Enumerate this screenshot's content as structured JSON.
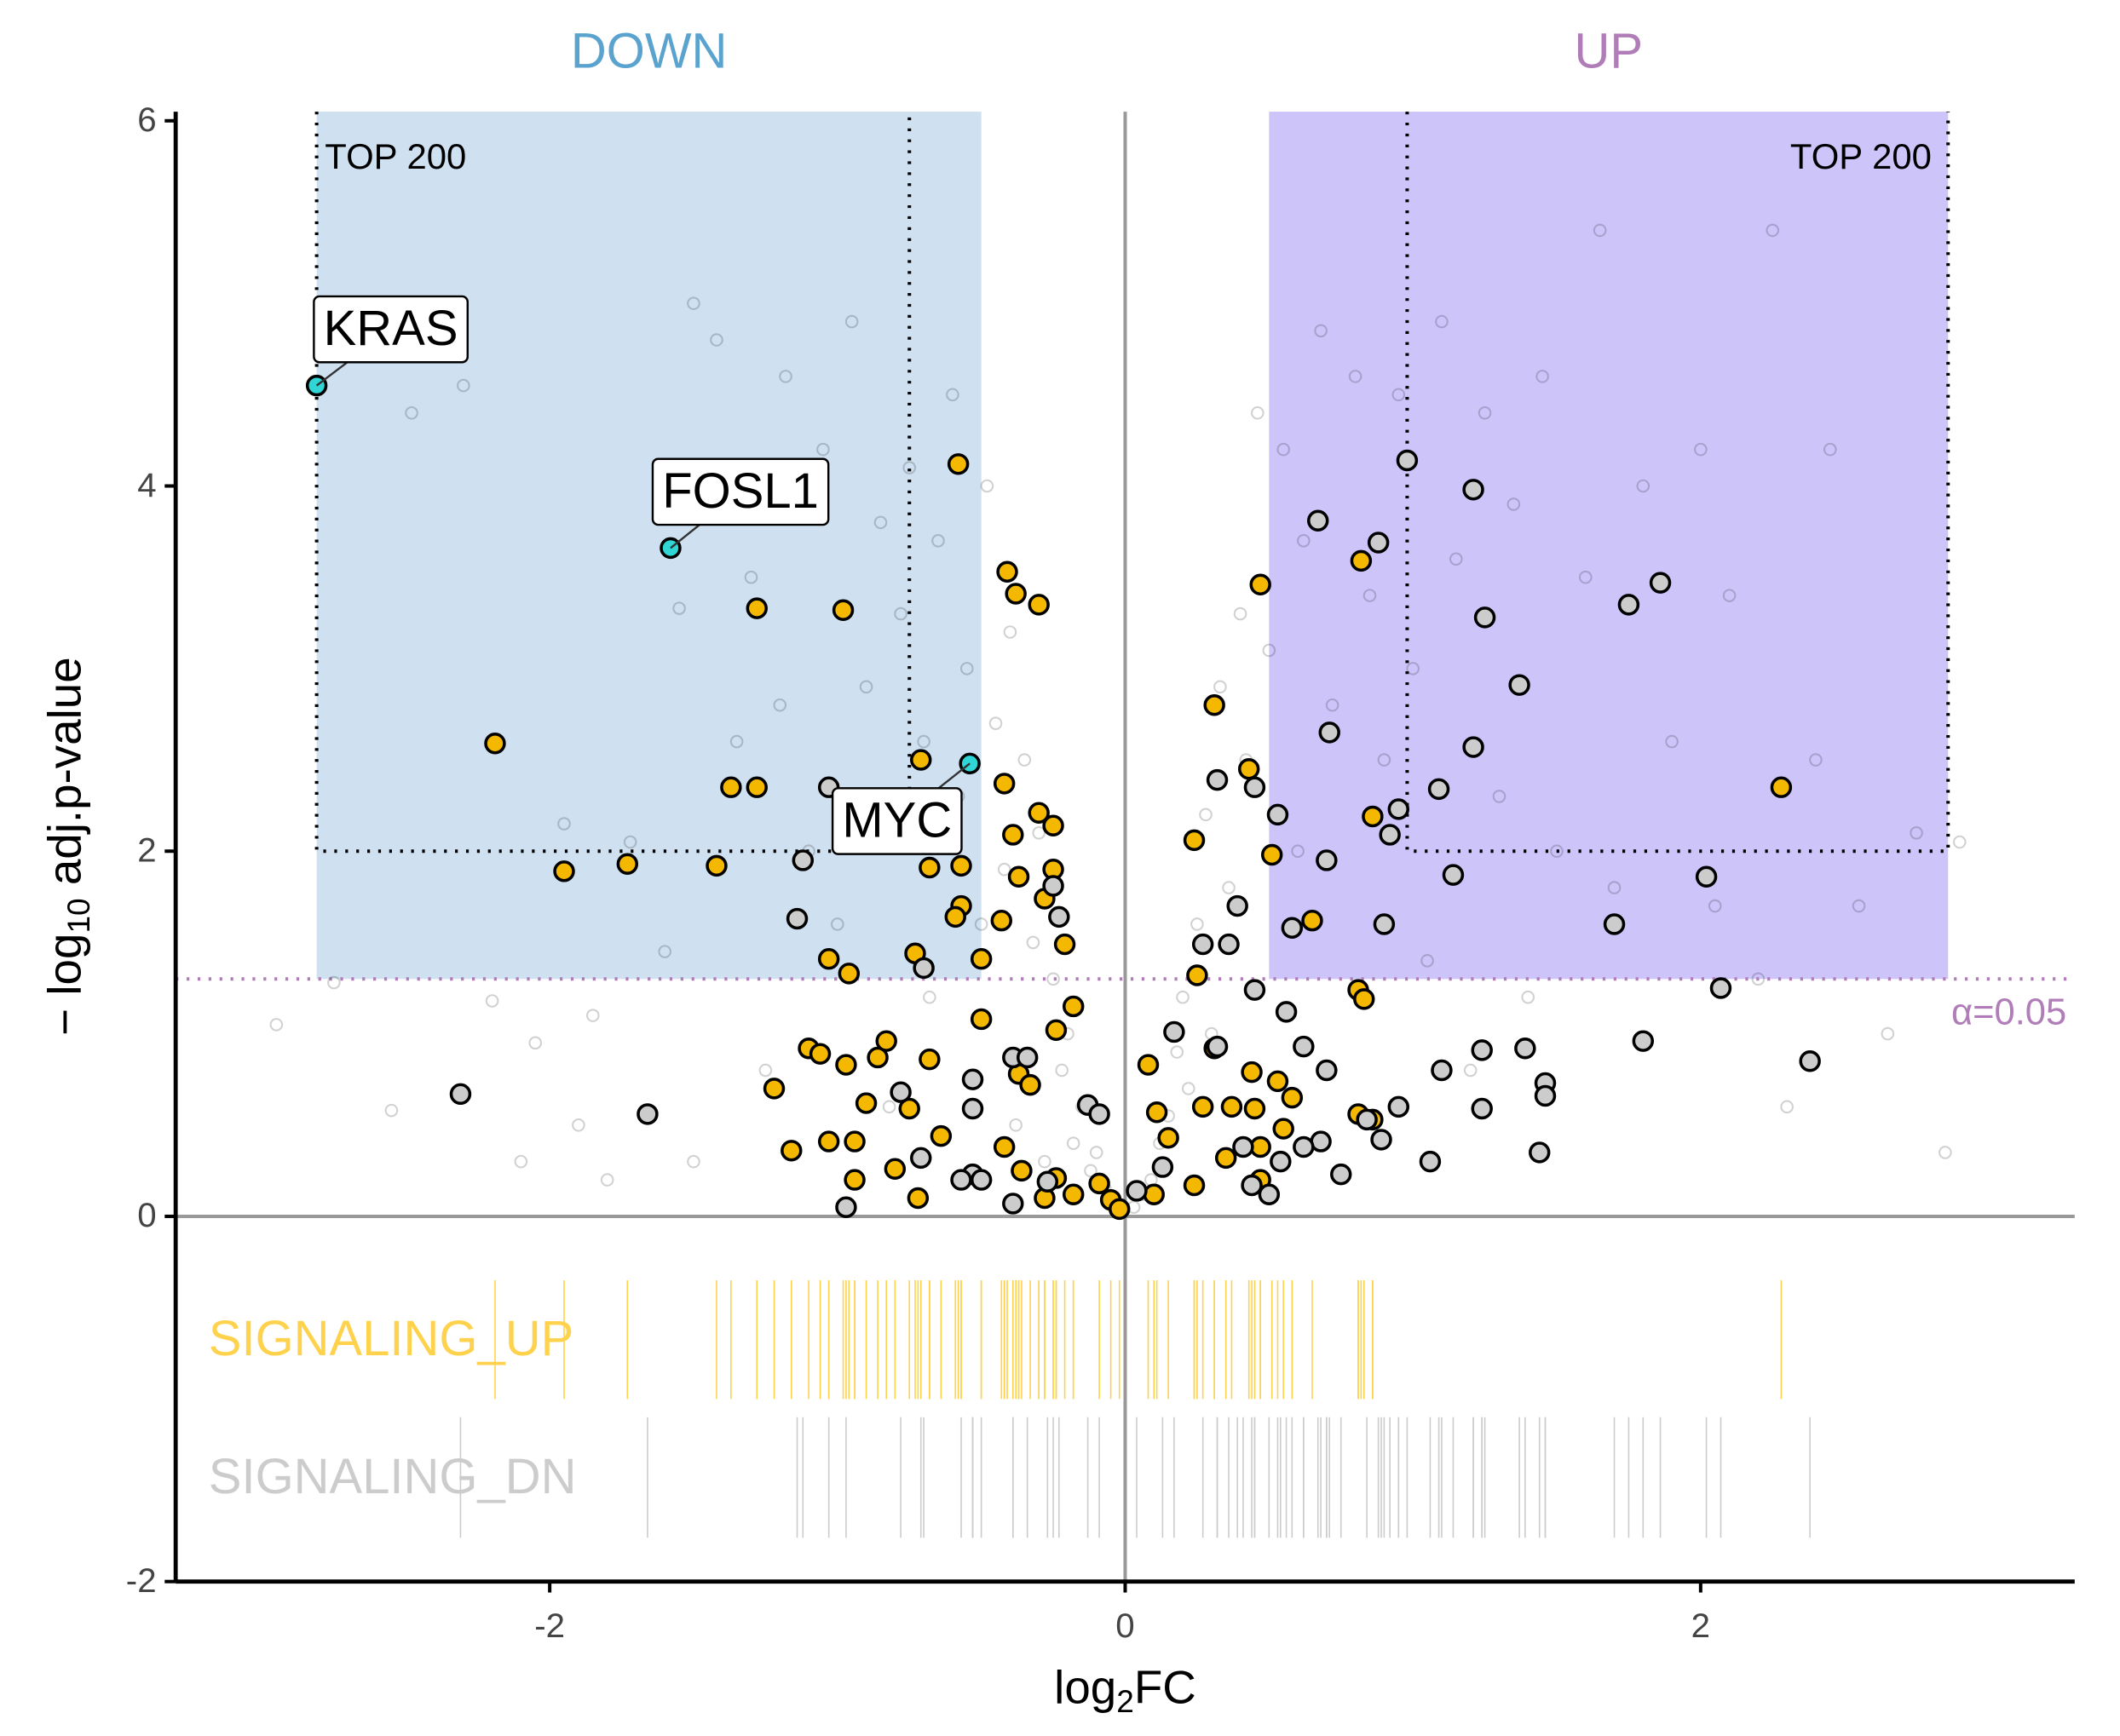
{
  "chart_data": {
    "type": "scatter",
    "xlabel": [
      "log",
      "2",
      "FC"
    ],
    "ylabel": [
      "− log",
      "10",
      " adj.p-value"
    ],
    "xlim": [
      -3.3,
      3.3
    ],
    "ylim": [
      -2,
      6.05
    ],
    "xticks": [
      -2,
      0,
      2
    ],
    "yticks": [
      -2,
      0,
      2,
      4,
      6
    ],
    "alpha": {
      "value": 1.3,
      "label": "α=0.05",
      "color": "#b07db8"
    },
    "regions": [
      {
        "label": "DOWN",
        "x": [
          -2.81,
          -0.5
        ],
        "color": "#cfe0f0",
        "text_color": "#5ba3cf"
      },
      {
        "label": "UP",
        "x": [
          0.5,
          2.86
        ],
        "color": "#cdc5fa",
        "text_color": "#b07db8"
      }
    ],
    "boxes": [
      {
        "label": "TOP 200",
        "x": [
          -2.81,
          -0.75
        ],
        "y": 2
      },
      {
        "label": "TOP 200",
        "x": [
          0.98,
          2.86
        ],
        "y": 2
      }
    ],
    "series": [
      {
        "color": "#000000",
        "marker": "open",
        "x": [
          -2.95,
          -2.75,
          -2.55,
          -2.48,
          -2.3,
          -2.2,
          -2.1,
          -2.05,
          -1.95,
          -1.9,
          -1.85,
          -1.8,
          -1.72,
          -1.6,
          -1.55,
          -1.5,
          -1.5,
          -1.42,
          -1.35,
          -1.3,
          -1.25,
          -1.2,
          -1.18,
          -1.1,
          -1.05,
          -1.0,
          -0.95,
          -0.9,
          -0.85,
          -0.82,
          -0.78,
          -0.75,
          -0.7,
          -0.68,
          -0.65,
          -0.6,
          -0.58,
          -0.55,
          -0.5,
          -0.48,
          -0.45,
          -0.42,
          -0.4,
          -0.38,
          -0.35,
          -0.32,
          -0.3,
          -0.28,
          -0.25,
          -0.22,
          -0.2,
          -0.18,
          -0.15,
          -0.12,
          -0.1,
          -0.07,
          -0.05,
          -0.03,
          0.03,
          0.06,
          0.09,
          0.12,
          0.15,
          0.18,
          0.2,
          0.22,
          0.25,
          0.28,
          0.3,
          0.33,
          0.36,
          0.4,
          0.42,
          0.46,
          0.5,
          0.55,
          0.6,
          0.62,
          0.68,
          0.72,
          0.8,
          0.85,
          0.9,
          0.95,
          1.0,
          1.05,
          1.1,
          1.15,
          1.2,
          1.25,
          1.3,
          1.35,
          1.4,
          1.45,
          1.5,
          1.6,
          1.65,
          1.7,
          1.8,
          1.9,
          2.0,
          2.05,
          2.1,
          2.2,
          2.25,
          2.3,
          2.4,
          2.45,
          2.55,
          2.65,
          2.75,
          2.85,
          2.9
        ],
        "values": [
          1.05,
          1.28,
          0.58,
          4.4,
          4.55,
          1.18,
          0.3,
          0.95,
          2.15,
          0.5,
          1.1,
          0.2,
          2.05,
          1.45,
          3.33,
          0.3,
          5.0,
          4.8,
          2.6,
          3.5,
          0.8,
          2.8,
          4.6,
          2.0,
          4.2,
          1.6,
          4.9,
          2.9,
          3.8,
          0.6,
          3.3,
          4.1,
          2.6,
          1.2,
          3.7,
          4.5,
          2.3,
          3.0,
          1.6,
          4.0,
          2.7,
          1.9,
          3.2,
          0.5,
          2.5,
          1.5,
          2.1,
          0.3,
          1.3,
          0.8,
          1.0,
          0.4,
          0.6,
          0.25,
          0.35,
          0.15,
          0.1,
          0.05,
          0.05,
          0.12,
          0.2,
          0.4,
          0.55,
          0.9,
          1.2,
          0.7,
          1.6,
          2.2,
          1.0,
          2.9,
          1.8,
          3.3,
          2.5,
          4.4,
          3.1,
          4.2,
          2.0,
          3.7,
          4.85,
          2.8,
          4.6,
          3.4,
          2.5,
          4.5,
          3.0,
          1.4,
          4.9,
          3.6,
          0.8,
          4.4,
          2.3,
          3.9,
          1.2,
          4.6,
          2.0,
          3.5,
          5.4,
          1.8,
          4.0,
          2.6,
          4.2,
          1.7,
          3.4,
          1.3,
          5.4,
          0.6,
          2.5,
          4.2,
          1.7,
          1.0,
          2.1,
          0.35,
          2.05
        ]
      },
      {
        "name": "SIGNALING_UP",
        "color": "#f5b800",
        "rug_color": "#ffd24d",
        "marker": "filled",
        "rug": true,
        "x": [
          -0.58,
          -0.41,
          -0.38,
          -0.3,
          -1.28,
          -0.98,
          -2.19,
          -1.37,
          -1.28,
          -0.71,
          -0.42,
          -0.3,
          -0.25,
          -0.39,
          -1.95,
          -1.73,
          -1.42,
          -0.68,
          -0.57,
          -0.37,
          -0.25,
          -0.57,
          -0.43,
          -0.28,
          -0.59,
          -0.73,
          -0.5,
          -1.03,
          -0.96,
          -0.21,
          -0.18,
          -0.24,
          -0.5,
          -1.1,
          -1.06,
          -0.86,
          -0.83,
          -0.68,
          -0.97,
          -0.37,
          -0.33,
          -1.22,
          -0.9,
          -0.75,
          -0.64,
          -1.16,
          -1.03,
          -0.94,
          -0.8,
          -0.94,
          -0.72,
          -0.42,
          -0.36,
          -0.24,
          -0.18,
          -0.28,
          -0.09,
          -0.05,
          -0.02,
          0.47,
          0.82,
          0.31,
          0.43,
          0.86,
          0.51,
          0.24,
          0.65,
          0.25,
          0.81,
          0.83,
          0.08,
          0.31,
          0.44,
          0.53,
          0.58,
          0.27,
          0.37,
          0.45,
          0.11,
          0.15,
          0.81,
          0.86,
          0.55,
          0.47,
          0.35,
          0.47,
          2.28,
          0.1,
          0.24
        ],
        "values": [
          4.12,
          3.53,
          3.41,
          3.35,
          3.33,
          3.32,
          2.59,
          2.35,
          2.35,
          2.5,
          2.37,
          2.21,
          2.14,
          2.09,
          1.89,
          1.93,
          1.92,
          1.91,
          1.92,
          1.86,
          1.9,
          1.7,
          1.62,
          1.74,
          1.64,
          1.44,
          1.41,
          1.41,
          1.33,
          1.49,
          1.15,
          1.02,
          1.08,
          0.92,
          0.89,
          0.87,
          0.96,
          0.86,
          0.83,
          0.78,
          0.72,
          0.7,
          0.62,
          0.59,
          0.44,
          0.36,
          0.41,
          0.41,
          0.26,
          0.2,
          0.1,
          0.38,
          0.25,
          0.21,
          0.12,
          0.1,
          0.18,
          0.09,
          0.04,
          3.46,
          3.59,
          2.8,
          2.45,
          2.19,
          1.98,
          2.06,
          1.62,
          1.32,
          1.24,
          1.19,
          0.83,
          0.92,
          0.79,
          0.74,
          0.65,
          0.6,
          0.6,
          0.59,
          0.57,
          0.43,
          0.56,
          0.53,
          0.48,
          0.38,
          0.32,
          0.2,
          2.35,
          0.12,
          0.17
        ]
      },
      {
        "name": "SIGNALING_DN",
        "color": "#cccccc",
        "rug_color": "#cccccc",
        "marker": "filled",
        "rug": true,
        "x": [
          0.98,
          1.21,
          0.67,
          0.88,
          1.86,
          1.75,
          1.25,
          1.37,
          0.71,
          1.21,
          1.09,
          0.45,
          0.95,
          0.92,
          0.53,
          0.32,
          0.7,
          1.14,
          2.02,
          0.39,
          0.36,
          0.27,
          0.58,
          0.9,
          1.7,
          0.45,
          0.56,
          2.07,
          0.62,
          0.32,
          0.17,
          1.8,
          2.38,
          1.24,
          1.39,
          1.1,
          0.7,
          1.46,
          1.46,
          0.95,
          1.24,
          0.84,
          0.89,
          1.44,
          1.06,
          0.68,
          0.62,
          0.41,
          0.75,
          0.54,
          0.44,
          0.5,
          0.13,
          0.04,
          -2.31,
          -1.66,
          -1.12,
          -1.14,
          -1.03,
          -0.7,
          -0.78,
          -0.53,
          -0.53,
          -0.39,
          -0.34,
          -0.23,
          -0.25,
          -0.13,
          -0.09,
          -0.71,
          -0.53,
          -0.39,
          -0.97,
          -0.5,
          -0.57,
          -0.27
        ],
        "values": [
          4.14,
          3.98,
          3.81,
          3.69,
          3.47,
          3.35,
          3.28,
          2.91,
          2.65,
          2.57,
          2.34,
          2.35,
          2.23,
          2.09,
          2.2,
          2.39,
          1.95,
          1.87,
          1.86,
          1.7,
          1.49,
          1.49,
          1.58,
          1.6,
          1.6,
          1.24,
          1.12,
          1.25,
          0.93,
          0.93,
          1.01,
          0.96,
          0.85,
          0.91,
          0.92,
          0.8,
          0.8,
          0.73,
          0.66,
          0.6,
          0.59,
          0.53,
          0.42,
          0.35,
          0.3,
          0.41,
          0.38,
          0.38,
          0.23,
          0.3,
          0.17,
          0.12,
          0.27,
          0.14,
          0.67,
          0.56,
          1.95,
          1.63,
          2.35,
          1.36,
          0.68,
          0.75,
          0.59,
          0.87,
          0.87,
          1.64,
          1.81,
          0.61,
          0.56,
          0.32,
          0.23,
          0.07,
          0.05,
          0.2,
          0.2,
          0.19
        ]
      },
      {
        "color": "#30d5d5",
        "marker": "filled",
        "labels": [
          "KRAS",
          "FOSL1",
          "MYC"
        ],
        "x": [
          -2.81,
          -1.58,
          -0.54
        ],
        "values": [
          4.55,
          3.66,
          2.48
        ]
      }
    ]
  }
}
